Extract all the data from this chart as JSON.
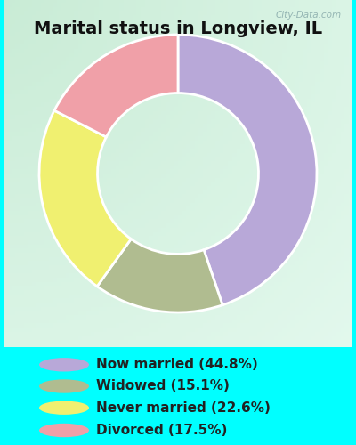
{
  "title": "Marital status in Longview, IL",
  "background_color": "#00FFFF",
  "chart_bg_top_left": "#d8f0e0",
  "chart_bg_center": "#f0faf4",
  "slices": [
    44.8,
    15.1,
    22.6,
    17.5
  ],
  "labels": [
    "Now married (44.8%)",
    "Widowed (15.1%)",
    "Never married (22.6%)",
    "Divorced (17.5%)"
  ],
  "colors": [
    "#b8a8d8",
    "#b0bc90",
    "#f0f070",
    "#f0a0a8"
  ],
  "start_angle": 90,
  "donut_width": 0.42,
  "watermark": "City-Data.com",
  "legend_text_color": "#222222",
  "title_color": "#111111",
  "title_fontsize": 14,
  "legend_fontsize": 11
}
